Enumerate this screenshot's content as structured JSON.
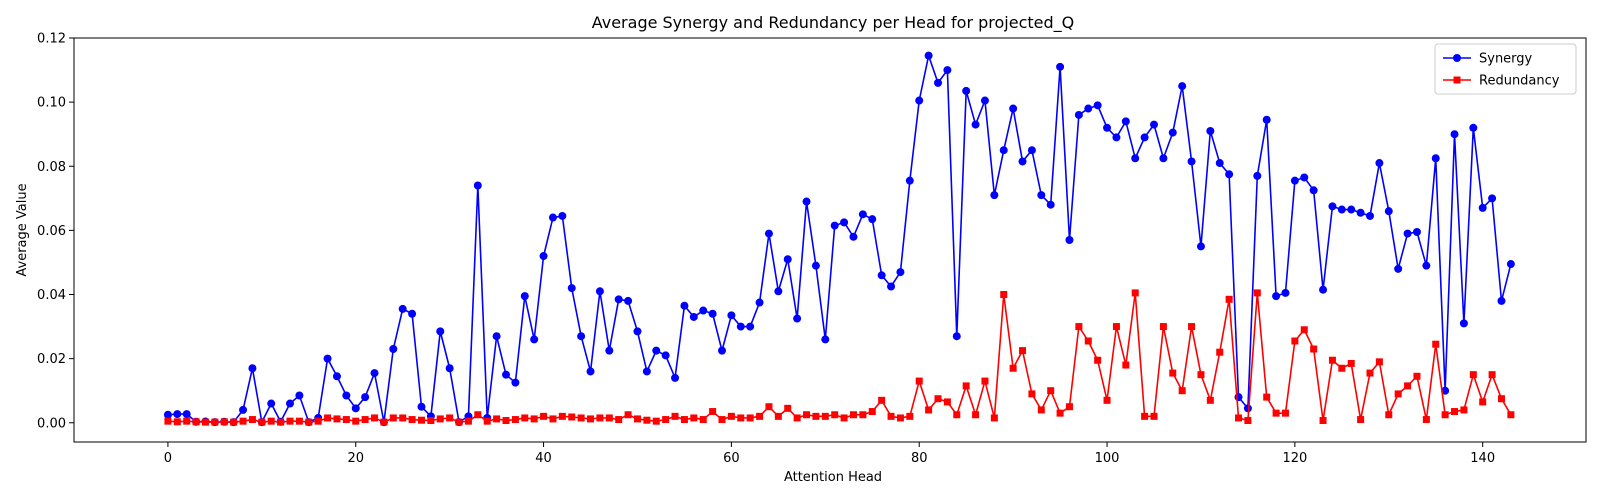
{
  "chart_data": {
    "type": "line",
    "title": "Average Synergy and Redundancy per Head for projected_Q",
    "xlabel": "Attention Head",
    "ylabel": "Average Value",
    "xlim": [
      -10,
      151
    ],
    "ylim": [
      -0.006,
      0.12
    ],
    "xticks": [
      0,
      20,
      40,
      60,
      80,
      100,
      120,
      140
    ],
    "yticks": [
      0.0,
      0.02,
      0.04,
      0.06,
      0.08,
      0.1,
      0.12
    ],
    "ytick_labels": [
      "0.00",
      "0.02",
      "0.04",
      "0.06",
      "0.08",
      "0.10",
      "0.12"
    ],
    "grid": false,
    "legend_position": "top-right",
    "x": [
      0,
      1,
      2,
      3,
      4,
      5,
      6,
      7,
      8,
      9,
      10,
      11,
      12,
      13,
      14,
      15,
      16,
      17,
      18,
      19,
      20,
      21,
      22,
      23,
      24,
      25,
      26,
      27,
      28,
      29,
      30,
      31,
      32,
      33,
      34,
      35,
      36,
      37,
      38,
      39,
      40,
      41,
      42,
      43,
      44,
      45,
      46,
      47,
      48,
      49,
      50,
      51,
      52,
      53,
      54,
      55,
      56,
      57,
      58,
      59,
      60,
      61,
      62,
      63,
      64,
      65,
      66,
      67,
      68,
      69,
      70,
      71,
      72,
      73,
      74,
      75,
      76,
      77,
      78,
      79,
      80,
      81,
      82,
      83,
      84,
      85,
      86,
      87,
      88,
      89,
      90,
      91,
      92,
      93,
      94,
      95,
      96,
      97,
      98,
      99,
      100,
      101,
      102,
      103,
      104,
      105,
      106,
      107,
      108,
      109,
      110,
      111,
      112,
      113,
      114,
      115,
      116,
      117,
      118,
      119,
      120,
      121,
      122,
      123,
      124,
      125,
      126,
      127,
      128,
      129,
      130,
      131,
      132,
      133,
      134,
      135,
      136,
      137,
      138,
      139,
      140,
      141,
      142,
      143
    ],
    "series": [
      {
        "name": "Synergy",
        "color": "#0000ff",
        "marker": "circle",
        "values": [
          0.0025,
          0.0027,
          0.0027,
          0.0003,
          0.0004,
          0.0002,
          0.0003,
          0.0002,
          0.004,
          0.017,
          0.0002,
          0.006,
          0.0003,
          0.006,
          0.0085,
          0.0002,
          0.0015,
          0.02,
          0.0145,
          0.0085,
          0.0045,
          0.008,
          0.0155,
          0.0002,
          0.023,
          0.0355,
          0.034,
          0.005,
          0.002,
          0.0285,
          0.017,
          0.0002,
          0.002,
          0.074,
          0.0015,
          0.027,
          0.015,
          0.0125,
          0.0395,
          0.026,
          0.052,
          0.064,
          0.0645,
          0.042,
          0.027,
          0.016,
          0.041,
          0.0225,
          0.0385,
          0.038,
          0.0285,
          0.016,
          0.0225,
          0.021,
          0.014,
          0.0365,
          0.033,
          0.035,
          0.034,
          0.0225,
          0.0335,
          0.03,
          0.03,
          0.0375,
          0.059,
          0.041,
          0.051,
          0.0325,
          0.069,
          0.049,
          0.026,
          0.0615,
          0.0625,
          0.058,
          0.065,
          0.0635,
          0.046,
          0.0425,
          0.047,
          0.0755,
          0.1005,
          0.1145,
          0.106,
          0.11,
          0.027,
          0.1035,
          0.093,
          0.1005,
          0.071,
          0.085,
          0.098,
          0.0815,
          0.085,
          0.071,
          0.068,
          0.111,
          0.057,
          0.096,
          0.098,
          0.099,
          0.092,
          0.089,
          0.094,
          0.0825,
          0.089,
          0.093,
          0.0825,
          0.0905,
          0.105,
          0.0815,
          0.055,
          0.091,
          0.081,
          0.0775,
          0.008,
          0.0045,
          0.077,
          0.0945,
          0.0395,
          0.0405,
          0.0755,
          0.0765,
          0.0725,
          0.0415,
          0.0675,
          0.0665,
          0.0665,
          0.0655,
          0.0645,
          0.081,
          0.066,
          0.048,
          0.059,
          0.0595,
          0.049,
          0.0825,
          0.01,
          0.09,
          0.031,
          0.092,
          0.067,
          0.07,
          0.038,
          0.0495
        ]
      },
      {
        "name": "Redundancy",
        "color": "#ff0000",
        "marker": "square",
        "values": [
          0.0005,
          0.0003,
          0.0005,
          0.0003,
          0.0002,
          0.0002,
          0.0003,
          0.0002,
          0.0005,
          0.001,
          0.0002,
          0.0005,
          0.0002,
          0.0005,
          0.0005,
          0.0002,
          0.0005,
          0.0015,
          0.0012,
          0.001,
          0.0005,
          0.001,
          0.0015,
          0.0002,
          0.0015,
          0.0015,
          0.001,
          0.0008,
          0.0007,
          0.0012,
          0.0015,
          0.0002,
          0.0005,
          0.0025,
          0.0005,
          0.0012,
          0.0007,
          0.001,
          0.0015,
          0.0012,
          0.002,
          0.0012,
          0.002,
          0.0018,
          0.0015,
          0.0012,
          0.0015,
          0.0015,
          0.001,
          0.0025,
          0.0012,
          0.0008,
          0.0005,
          0.001,
          0.002,
          0.001,
          0.0015,
          0.001,
          0.0035,
          0.001,
          0.002,
          0.0015,
          0.0015,
          0.002,
          0.005,
          0.002,
          0.0045,
          0.0015,
          0.0025,
          0.002,
          0.002,
          0.0025,
          0.0015,
          0.0025,
          0.0025,
          0.0035,
          0.007,
          0.002,
          0.0015,
          0.002,
          0.013,
          0.004,
          0.0075,
          0.0065,
          0.0025,
          0.0115,
          0.0025,
          0.013,
          0.0015,
          0.04,
          0.017,
          0.0225,
          0.009,
          0.004,
          0.01,
          0.003,
          0.005,
          0.03,
          0.0255,
          0.0195,
          0.007,
          0.03,
          0.018,
          0.0405,
          0.002,
          0.002,
          0.03,
          0.0155,
          0.01,
          0.03,
          0.015,
          0.007,
          0.022,
          0.0385,
          0.0015,
          0.0007,
          0.0405,
          0.008,
          0.003,
          0.003,
          0.0255,
          0.029,
          0.023,
          0.0007,
          0.0195,
          0.017,
          0.0185,
          0.001,
          0.0155,
          0.019,
          0.0025,
          0.009,
          0.0115,
          0.0145,
          0.001,
          0.0245,
          0.0025,
          0.0035,
          0.004,
          0.015,
          0.0065,
          0.015,
          0.0075,
          0.0025
        ]
      }
    ]
  }
}
